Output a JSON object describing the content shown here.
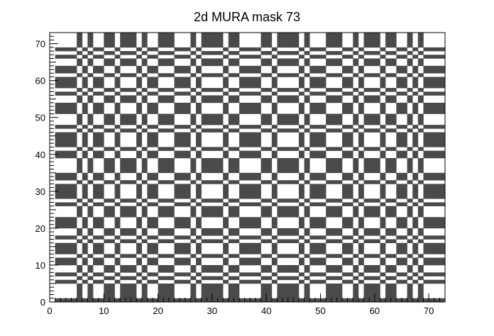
{
  "chart_data": {
    "type": "heatmap",
    "title": "2d MURA mask 73",
    "xlabel": "",
    "ylabel": "",
    "size": 73,
    "xlim": [
      0,
      73
    ],
    "ylim": [
      0,
      73
    ],
    "x_tick_labels": [
      "0",
      "10",
      "20",
      "30",
      "40",
      "50",
      "60",
      "70"
    ],
    "y_tick_labels": [
      "0",
      "10",
      "20",
      "30",
      "40",
      "50",
      "60",
      "70"
    ],
    "fill_rule": "row 0 is filled except column 0; column 0 is open; other cells are filled when exactly one of the row index and the column index is a quadratic residue mod 73",
    "fill_color": "#4a4a4a",
    "empty_color": "#ffffff"
  }
}
